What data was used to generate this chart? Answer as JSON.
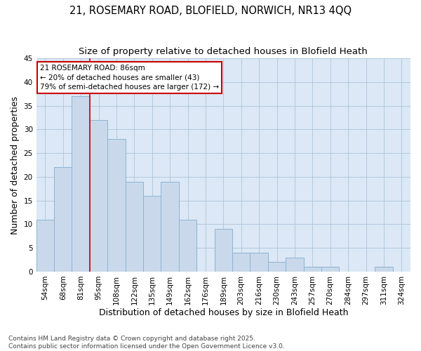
{
  "title1": "21, ROSEMARY ROAD, BLOFIELD, NORWICH, NR13 4QQ",
  "title2": "Size of property relative to detached houses in Blofield Heath",
  "xlabel": "Distribution of detached houses by size in Blofield Heath",
  "ylabel": "Number of detached properties",
  "bar_labels": [
    "54sqm",
    "68sqm",
    "81sqm",
    "95sqm",
    "108sqm",
    "122sqm",
    "135sqm",
    "149sqm",
    "162sqm",
    "176sqm",
    "189sqm",
    "203sqm",
    "216sqm",
    "230sqm",
    "243sqm",
    "257sqm",
    "270sqm",
    "284sqm",
    "297sqm",
    "311sqm",
    "324sqm"
  ],
  "bar_values": [
    11,
    22,
    37,
    32,
    28,
    19,
    16,
    19,
    11,
    0,
    9,
    4,
    4,
    2,
    3,
    1,
    1,
    0,
    0,
    1,
    0
  ],
  "bar_color": "#c9d9eb",
  "bar_edge_color": "#8ab4d4",
  "vline_x": 2,
  "vline_color": "#cc0000",
  "annotation_text": "21 ROSEMARY ROAD: 86sqm\n← 20% of detached houses are smaller (43)\n79% of semi-detached houses are larger (172) →",
  "annotation_box_color": "white",
  "annotation_box_edge": "#cc0000",
  "ylim": [
    0,
    45
  ],
  "yticks": [
    0,
    5,
    10,
    15,
    20,
    25,
    30,
    35,
    40,
    45
  ],
  "grid_color": "#adc4dc",
  "bg_color": "#dce8f5",
  "footer": "Contains HM Land Registry data © Crown copyright and database right 2025.\nContains public sector information licensed under the Open Government Licence v3.0.",
  "title_fontsize": 10.5,
  "subtitle_fontsize": 9.5,
  "axis_label_fontsize": 9,
  "tick_fontsize": 7.5,
  "annotation_fontsize": 7.5,
  "footer_fontsize": 6.5
}
